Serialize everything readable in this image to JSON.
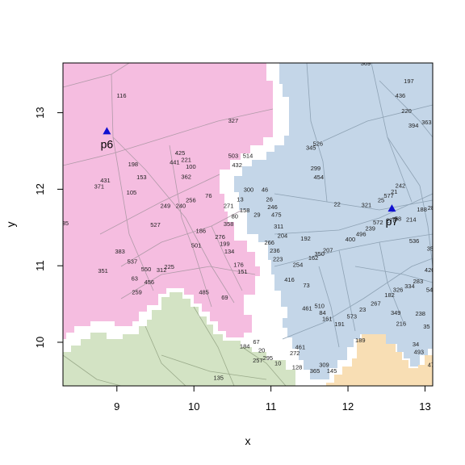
{
  "chart_data": {
    "type": "map",
    "xlabel": "x",
    "ylabel": "y",
    "xlim": [
      8.3,
      13.1
    ],
    "ylim": [
      9.43,
      13.65
    ],
    "x_ticks": [
      "9",
      "10",
      "11",
      "12",
      "13"
    ],
    "y_ticks": [
      "10",
      "11",
      "12",
      "13"
    ],
    "regions": [
      {
        "name": "pink",
        "color": "#f5bde0"
      },
      {
        "name": "blue",
        "color": "#c4d6e8"
      },
      {
        "name": "green",
        "color": "#d3e3c4"
      },
      {
        "name": "orange",
        "color": "#f8deb4"
      }
    ],
    "points": [
      {
        "label": "p6",
        "x": 8.87,
        "y": 12.76,
        "color": "#1010d0"
      },
      {
        "label": "p7",
        "x": 12.57,
        "y": 11.75,
        "color": "#1010d0"
      }
    ],
    "parcel_labels": [
      {
        "text": "116",
        "x": 9.06,
        "y": 13.23
      },
      {
        "text": "327",
        "x": 10.51,
        "y": 12.9
      },
      {
        "text": "425",
        "x": 9.82,
        "y": 12.48
      },
      {
        "text": "221",
        "x": 9.9,
        "y": 12.39
      },
      {
        "text": "441",
        "x": 9.75,
        "y": 12.36
      },
      {
        "text": "100",
        "x": 9.96,
        "y": 12.3
      },
      {
        "text": "198",
        "x": 9.21,
        "y": 12.33
      },
      {
        "text": "153",
        "x": 9.32,
        "y": 12.16
      },
      {
        "text": "362",
        "x": 9.9,
        "y": 12.17
      },
      {
        "text": "431",
        "x": 8.85,
        "y": 12.12
      },
      {
        "text": "371",
        "x": 8.77,
        "y": 12.04
      },
      {
        "text": "105",
        "x": 9.19,
        "y": 11.96
      },
      {
        "text": "256",
        "x": 9.96,
        "y": 11.86
      },
      {
        "text": "249",
        "x": 9.63,
        "y": 11.79
      },
      {
        "text": "240",
        "x": 9.83,
        "y": 11.79
      },
      {
        "text": "76",
        "x": 10.19,
        "y": 11.92
      },
      {
        "text": "527",
        "x": 9.5,
        "y": 11.54
      },
      {
        "text": "186",
        "x": 10.09,
        "y": 11.46
      },
      {
        "text": "501",
        "x": 10.03,
        "y": 11.27
      },
      {
        "text": "276",
        "x": 10.34,
        "y": 11.38
      },
      {
        "text": "199",
        "x": 10.4,
        "y": 11.29
      },
      {
        "text": "134",
        "x": 10.46,
        "y": 11.19
      },
      {
        "text": "383",
        "x": 9.04,
        "y": 11.19
      },
      {
        "text": "537",
        "x": 9.2,
        "y": 11.06
      },
      {
        "text": "351",
        "x": 8.82,
        "y": 10.94
      },
      {
        "text": "550",
        "x": 9.38,
        "y": 10.96
      },
      {
        "text": "312",
        "x": 9.58,
        "y": 10.95
      },
      {
        "text": "225",
        "x": 9.68,
        "y": 10.99
      },
      {
        "text": "63",
        "x": 9.23,
        "y": 10.84
      },
      {
        "text": "456",
        "x": 9.42,
        "y": 10.79
      },
      {
        "text": "259",
        "x": 9.26,
        "y": 10.66
      },
      {
        "text": "485",
        "x": 10.13,
        "y": 10.66
      },
      {
        "text": "69",
        "x": 10.4,
        "y": 10.59
      },
      {
        "text": "176",
        "x": 10.58,
        "y": 11.02
      },
      {
        "text": "151",
        "x": 10.63,
        "y": 10.93
      },
      {
        "text": "503",
        "x": 10.51,
        "y": 12.44
      },
      {
        "text": "514",
        "x": 10.7,
        "y": 12.44
      },
      {
        "text": "432",
        "x": 10.56,
        "y": 12.32
      },
      {
        "text": "300",
        "x": 10.71,
        "y": 12.0
      },
      {
        "text": "46",
        "x": 10.92,
        "y": 12.0
      },
      {
        "text": "13",
        "x": 10.6,
        "y": 11.87
      },
      {
        "text": "26",
        "x": 10.98,
        "y": 11.87
      },
      {
        "text": "271",
        "x": 10.45,
        "y": 11.79
      },
      {
        "text": "158",
        "x": 10.66,
        "y": 11.73
      },
      {
        "text": "246",
        "x": 11.02,
        "y": 11.77
      },
      {
        "text": "29",
        "x": 10.82,
        "y": 11.67
      },
      {
        "text": "475",
        "x": 11.07,
        "y": 11.67
      },
      {
        "text": "80",
        "x": 10.53,
        "y": 11.65
      },
      {
        "text": "358",
        "x": 10.45,
        "y": 11.55
      },
      {
        "text": "311",
        "x": 11.1,
        "y": 11.52
      },
      {
        "text": "204",
        "x": 11.15,
        "y": 11.4
      },
      {
        "text": "266",
        "x": 10.98,
        "y": 11.31
      },
      {
        "text": "236",
        "x": 11.05,
        "y": 11.2
      },
      {
        "text": "223",
        "x": 11.09,
        "y": 11.09
      },
      {
        "text": "416",
        "x": 11.24,
        "y": 10.82
      },
      {
        "text": "73",
        "x": 11.46,
        "y": 10.75
      },
      {
        "text": "369",
        "x": 12.23,
        "y": 13.65
      },
      {
        "text": "197",
        "x": 12.79,
        "y": 13.42
      },
      {
        "text": "436",
        "x": 12.68,
        "y": 13.23
      },
      {
        "text": "220",
        "x": 12.76,
        "y": 13.03
      },
      {
        "text": "394",
        "x": 12.85,
        "y": 12.84
      },
      {
        "text": "363",
        "x": 13.02,
        "y": 12.88
      },
      {
        "text": "526",
        "x": 11.61,
        "y": 12.6
      },
      {
        "text": "345",
        "x": 11.52,
        "y": 12.55
      },
      {
        "text": "299",
        "x": 11.58,
        "y": 12.28
      },
      {
        "text": "454",
        "x": 11.62,
        "y": 12.16
      },
      {
        "text": "242",
        "x": 12.68,
        "y": 12.05
      },
      {
        "text": "21",
        "x": 12.6,
        "y": 11.97
      },
      {
        "text": "577",
        "x": 12.53,
        "y": 11.92
      },
      {
        "text": "25",
        "x": 12.43,
        "y": 11.86
      },
      {
        "text": "321",
        "x": 12.24,
        "y": 11.8
      },
      {
        "text": "22",
        "x": 11.86,
        "y": 11.81
      },
      {
        "text": "192",
        "x": 11.45,
        "y": 11.36
      },
      {
        "text": "400",
        "x": 12.03,
        "y": 11.35
      },
      {
        "text": "496",
        "x": 12.17,
        "y": 11.42
      },
      {
        "text": "239",
        "x": 12.29,
        "y": 11.49
      },
      {
        "text": "572",
        "x": 12.39,
        "y": 11.57
      },
      {
        "text": "278",
        "x": 12.56,
        "y": 11.6
      },
      {
        "text": "58",
        "x": 12.65,
        "y": 11.62
      },
      {
        "text": "214",
        "x": 12.82,
        "y": 11.61
      },
      {
        "text": "188",
        "x": 12.96,
        "y": 11.74
      },
      {
        "text": "289",
        "x": 13.1,
        "y": 11.76
      },
      {
        "text": "207",
        "x": 11.74,
        "y": 11.21
      },
      {
        "text": "350",
        "x": 11.63,
        "y": 11.16
      },
      {
        "text": "162",
        "x": 11.55,
        "y": 11.11
      },
      {
        "text": "254",
        "x": 11.35,
        "y": 11.02
      },
      {
        "text": "536",
        "x": 12.86,
        "y": 11.33
      },
      {
        "text": "354",
        "x": 13.09,
        "y": 11.23
      },
      {
        "text": "420",
        "x": 13.06,
        "y": 10.95
      },
      {
        "text": "283",
        "x": 12.91,
        "y": 10.8
      },
      {
        "text": "334",
        "x": 12.8,
        "y": 10.74
      },
      {
        "text": "326",
        "x": 12.65,
        "y": 10.69
      },
      {
        "text": "541",
        "x": 13.08,
        "y": 10.69
      },
      {
        "text": "182",
        "x": 12.54,
        "y": 10.62
      },
      {
        "text": "267",
        "x": 12.36,
        "y": 10.51
      },
      {
        "text": "510",
        "x": 11.63,
        "y": 10.48
      },
      {
        "text": "461",
        "x": 11.47,
        "y": 10.45
      },
      {
        "text": "84",
        "x": 11.67,
        "y": 10.39
      },
      {
        "text": "23",
        "x": 12.19,
        "y": 10.43
      },
      {
        "text": "573",
        "x": 12.05,
        "y": 10.34
      },
      {
        "text": "349",
        "x": 12.62,
        "y": 10.39
      },
      {
        "text": "238",
        "x": 12.94,
        "y": 10.38
      },
      {
        "text": "161",
        "x": 11.73,
        "y": 10.31
      },
      {
        "text": "191",
        "x": 11.89,
        "y": 10.24
      },
      {
        "text": "216",
        "x": 12.69,
        "y": 10.25
      },
      {
        "text": "35",
        "x": 13.02,
        "y": 10.21
      },
      {
        "text": "189",
        "x": 12.16,
        "y": 10.03
      },
      {
        "text": "34",
        "x": 12.88,
        "y": 9.98
      },
      {
        "text": "493",
        "x": 12.92,
        "y": 9.88
      },
      {
        "text": "473",
        "x": 13.1,
        "y": 9.71
      },
      {
        "text": "461",
        "x": 11.38,
        "y": 9.94
      },
      {
        "text": "272",
        "x": 11.31,
        "y": 9.86
      },
      {
        "text": "309",
        "x": 11.69,
        "y": 9.71
      },
      {
        "text": "365",
        "x": 11.57,
        "y": 9.63
      },
      {
        "text": "145",
        "x": 11.79,
        "y": 9.63
      },
      {
        "text": "67",
        "x": 10.81,
        "y": 10.01
      },
      {
        "text": "184",
        "x": 10.66,
        "y": 9.95
      },
      {
        "text": "20",
        "x": 10.88,
        "y": 9.9
      },
      {
        "text": "295",
        "x": 10.96,
        "y": 9.8
      },
      {
        "text": "257",
        "x": 10.83,
        "y": 9.77
      },
      {
        "text": "10",
        "x": 11.09,
        "y": 9.73
      },
      {
        "text": "128",
        "x": 11.34,
        "y": 9.68
      },
      {
        "text": "135",
        "x": 10.32,
        "y": 9.54
      },
      {
        "text": "35",
        "x": 8.33,
        "y": 11.56
      }
    ]
  }
}
